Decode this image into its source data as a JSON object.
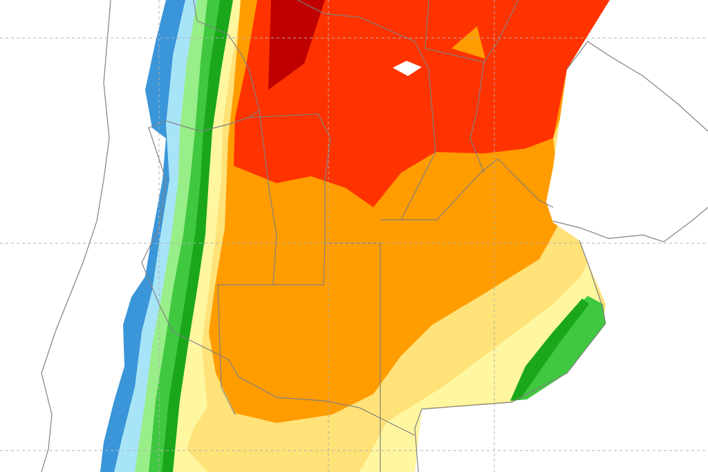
{
  "map": {
    "colors": {
      "blue": "#3a96d8",
      "light_blue": "#a8e4f8",
      "light_green": "#98ee88",
      "green": "#40c840",
      "dark_green": "#1aa81a",
      "pale_yellow": "#fff6a0",
      "light_orange": "#ffe278",
      "orange": "#ff9c00",
      "red": "#ff3300",
      "dark_red": "#c00000",
      "border": "#808080",
      "background": "#ffffff"
    }
  }
}
